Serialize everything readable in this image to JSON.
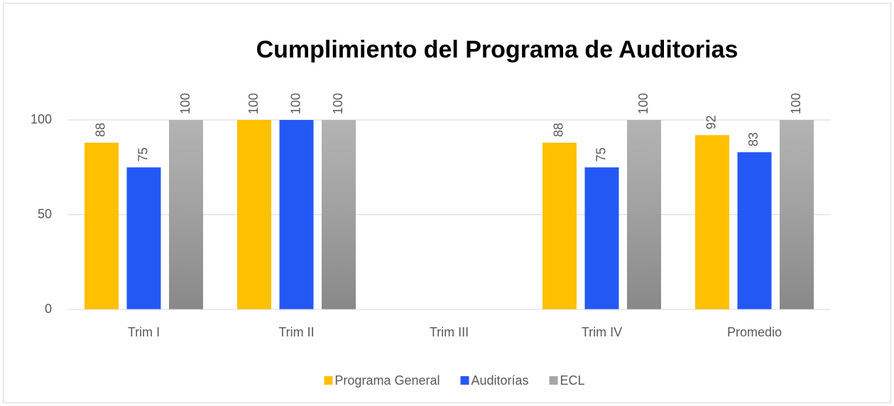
{
  "chart_data": {
    "type": "bar",
    "title": "Cumplimiento del Programa de Auditorias",
    "categories": [
      "Trim I",
      "Trim II",
      "Trim III",
      "Trim IV",
      "Promedio"
    ],
    "series": [
      {
        "name": "Programa General",
        "color": "#ffc000",
        "values": [
          88,
          100,
          null,
          88,
          92
        ]
      },
      {
        "name": "Auditorías",
        "color": "#2458f5",
        "values": [
          75,
          100,
          null,
          75,
          83
        ]
      },
      {
        "name": "ECL",
        "color": "#a6a6a6",
        "gradient": true,
        "values": [
          100,
          100,
          null,
          100,
          100
        ]
      }
    ],
    "ylim": [
      0,
      100
    ],
    "yticks": [
      0,
      50,
      100
    ],
    "grid": true,
    "legend": "bottom"
  }
}
